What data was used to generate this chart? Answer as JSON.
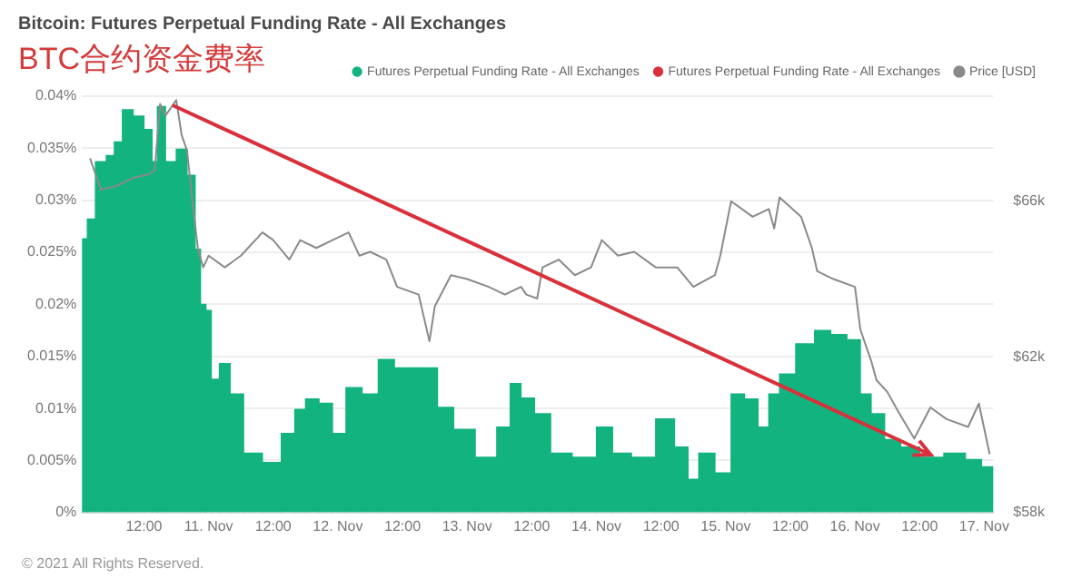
{
  "chart_data": {
    "type": "bar",
    "title": "Bitcoin: Futures Perpetual Funding Rate - All Exchanges",
    "subtitle": "BTC合约资金费率",
    "annotations": [
      "© 2021 All Rights Reserved."
    ],
    "legend": "top right",
    "grid": "y",
    "marker": "none",
    "xlim": [
      "2021-11-10T00:30",
      "2021-11-17T01:40"
    ],
    "xticks": [
      {
        "value": "2021-11-10T12:00",
        "label": "12:00"
      },
      {
        "value": "2021-11-11T00:00",
        "label": "11. Nov"
      },
      {
        "value": "2021-11-11T12:00",
        "label": "12:00"
      },
      {
        "value": "2021-11-12T00:00",
        "label": "12. Nov"
      },
      {
        "value": "2021-11-12T12:00",
        "label": "12:00"
      },
      {
        "value": "2021-11-13T00:00",
        "label": "13. Nov"
      },
      {
        "value": "2021-11-13T12:00",
        "label": "12:00"
      },
      {
        "value": "2021-11-14T00:00",
        "label": "14. Nov"
      },
      {
        "value": "2021-11-14T12:00",
        "label": "12:00"
      },
      {
        "value": "2021-11-15T00:00",
        "label": "15. Nov"
      },
      {
        "value": "2021-11-15T12:00",
        "label": "12:00"
      },
      {
        "value": "2021-11-16T00:00",
        "label": "16. Nov"
      },
      {
        "value": "2021-11-16T12:00",
        "label": "12:00"
      },
      {
        "value": "2021-11-17T00:00",
        "label": "17. Nov"
      }
    ],
    "ylim": [
      0,
      0.04
    ],
    "yticks": [
      {
        "value": 0,
        "label": "0%"
      },
      {
        "value": 0.005,
        "label": "0.005%"
      },
      {
        "value": 0.01,
        "label": "0.01%"
      },
      {
        "value": 0.015,
        "label": "0.015%"
      },
      {
        "value": 0.02,
        "label": "0.02%"
      },
      {
        "value": 0.025,
        "label": "0.025%"
      },
      {
        "value": 0.03,
        "label": "0.03%"
      },
      {
        "value": 0.035,
        "label": "0.035%"
      },
      {
        "value": 0.04,
        "label": "0.04%"
      }
    ],
    "y2lim": [
      58000,
      68700
    ],
    "y2ticks": [
      {
        "value": 58000,
        "label": "$58k"
      },
      {
        "value": 62000,
        "label": "$62k"
      },
      {
        "value": 66000,
        "label": "$66k"
      }
    ],
    "series": [
      {
        "name": "Futures Perpetual Funding Rate - All Exchanges",
        "color": "#13b37f",
        "x": [
          "2021-11-10T01:00",
          "2021-11-10T02:00",
          "2021-11-10T04:00",
          "2021-11-10T06:00",
          "2021-11-10T07:00",
          "2021-11-10T09:00",
          "2021-11-10T11:00",
          "2021-11-10T13:00",
          "2021-11-10T14:00",
          "2021-11-10T15:00",
          "2021-11-10T17:00",
          "2021-11-10T19:00",
          "2021-11-10T21:00",
          "2021-11-10T22:00",
          "2021-11-10T23:00",
          "2021-11-11T00:00",
          "2021-11-11T01:00",
          "2021-11-11T03:00",
          "2021-11-11T05:00",
          "2021-11-11T08:00",
          "2021-11-11T12:00",
          "2021-11-11T15:00",
          "2021-11-11T17:00",
          "2021-11-11T19:00",
          "2021-11-11T22:00",
          "2021-11-12T00:00",
          "2021-11-12T03:00",
          "2021-11-12T06:00",
          "2021-11-12T09:00",
          "2021-11-12T12:00",
          "2021-11-12T17:00",
          "2021-11-12T20:00",
          "2021-11-12T23:00",
          "2021-11-13T04:00",
          "2021-11-13T07:00",
          "2021-11-13T09:00",
          "2021-11-13T11:00",
          "2021-11-13T14:00",
          "2021-11-13T17:00",
          "2021-11-13T22:00",
          "2021-11-14T02:00",
          "2021-11-14T04:00",
          "2021-11-14T09:00",
          "2021-11-14T13:00",
          "2021-11-14T16:00",
          "2021-11-14T18:00",
          "2021-11-14T20:00",
          "2021-11-15T00:00",
          "2021-11-15T02:00",
          "2021-11-15T05:00",
          "2021-11-15T07:00",
          "2021-11-15T09:00",
          "2021-11-15T11:00",
          "2021-11-15T15:00",
          "2021-11-15T18:00",
          "2021-11-15T21:00",
          "2021-11-16T00:00",
          "2021-11-16T02:00",
          "2021-11-16T04:00",
          "2021-11-16T07:00",
          "2021-11-16T10:00",
          "2021-11-16T14:00",
          "2021-11-16T19:00",
          "2021-11-16T22:00",
          "2021-11-17T01:00"
        ],
        "values": [
          0.0263,
          0.0282,
          0.0337,
          0.0343,
          0.0356,
          0.0387,
          0.0381,
          0.0368,
          0.0337,
          0.039,
          0.0337,
          0.0349,
          0.0324,
          0.0253,
          0.02,
          0.0194,
          0.0128,
          0.0143,
          0.0114,
          0.0057,
          0.0048,
          0.0076,
          0.0099,
          0.0109,
          0.0105,
          0.0076,
          0.012,
          0.0114,
          0.0147,
          0.0139,
          0.0139,
          0.0101,
          0.008,
          0.0053,
          0.0082,
          0.0124,
          0.011,
          0.0095,
          0.0057,
          0.0053,
          0.0082,
          0.0057,
          0.0053,
          0.009,
          0.0063,
          0.0032,
          0.0057,
          0.0038,
          0.0114,
          0.0109,
          0.0082,
          0.0114,
          0.0133,
          0.0162,
          0.0175,
          0.0171,
          0.0166,
          0.0114,
          0.0095,
          0.007,
          0.0063,
          0.0053,
          0.0057,
          0.0051,
          0.0044
        ]
      },
      {
        "name": "Futures Perpetual Funding Rate - All Exchanges",
        "color": "#d9303b"
      },
      {
        "name": "Price [USD]",
        "type": "line",
        "axis": "y2",
        "color": "#8a8a8a",
        "x": [
          "2021-11-10T02:00",
          "2021-11-10T03:00",
          "2021-11-10T04:00",
          "2021-11-10T07:00",
          "2021-11-10T10:00",
          "2021-11-10T13:00",
          "2021-11-10T14:00",
          "2021-11-10T15:00",
          "2021-11-10T16:00",
          "2021-11-10T18:00",
          "2021-11-10T19:00",
          "2021-11-10T20:00",
          "2021-11-10T21:00",
          "2021-11-10T22:00",
          "2021-11-10T23:00",
          "2021-11-11T00:00",
          "2021-11-11T03:00",
          "2021-11-11T06:00",
          "2021-11-11T10:00",
          "2021-11-11T12:00",
          "2021-11-11T15:00",
          "2021-11-11T17:00",
          "2021-11-11T20:00",
          "2021-11-11T23:00",
          "2021-11-12T02:00",
          "2021-11-12T04:00",
          "2021-11-12T06:00",
          "2021-11-12T09:00",
          "2021-11-12T11:00",
          "2021-11-12T15:00",
          "2021-11-12T17:00",
          "2021-11-12T18:00",
          "2021-11-12T21:00",
          "2021-11-13T00:00",
          "2021-11-13T04:00",
          "2021-11-13T07:00",
          "2021-11-13T10:00",
          "2021-11-13T11:00",
          "2021-11-13T13:00",
          "2021-11-13T14:00",
          "2021-11-13T17:00",
          "2021-11-13T20:00",
          "2021-11-13T23:00",
          "2021-11-14T01:00",
          "2021-11-14T04:00",
          "2021-11-14T07:00",
          "2021-11-14T11:00",
          "2021-11-14T15:00",
          "2021-11-14T18:00",
          "2021-11-14T22:00",
          "2021-11-14T23:00",
          "2021-11-15T01:00",
          "2021-11-15T05:00",
          "2021-11-15T08:00",
          "2021-11-15T09:00",
          "2021-11-15T10:00",
          "2021-11-15T14:00",
          "2021-11-15T16:00",
          "2021-11-15T17:00",
          "2021-11-15T20:00",
          "2021-11-16T00:00",
          "2021-11-16T01:00",
          "2021-11-16T03:00",
          "2021-11-16T04:00",
          "2021-11-16T06:00",
          "2021-11-16T08:00",
          "2021-11-16T11:00",
          "2021-11-16T14:00",
          "2021-11-16T17:00",
          "2021-11-16T21:00",
          "2021-11-16T23:00",
          "2021-11-17T01:00"
        ],
        "values": [
          67100,
          66700,
          66300,
          66400,
          66600,
          66700,
          66800,
          68500,
          68200,
          68600,
          67700,
          67300,
          66000,
          64800,
          64300,
          64600,
          64300,
          64600,
          65200,
          65000,
          64500,
          65000,
          64800,
          65000,
          65200,
          64600,
          64700,
          64500,
          63800,
          63600,
          62400,
          63300,
          64100,
          64000,
          63800,
          63600,
          63800,
          63600,
          63500,
          64300,
          64500,
          64100,
          64300,
          65000,
          64600,
          64700,
          64300,
          64300,
          63800,
          64100,
          64600,
          66000,
          65600,
          65800,
          65300,
          66100,
          65600,
          64800,
          64200,
          64000,
          63800,
          62700,
          61900,
          61400,
          61100,
          60600,
          59900,
          60700,
          60400,
          60200,
          60800,
          59500
        ]
      }
    ]
  }
}
